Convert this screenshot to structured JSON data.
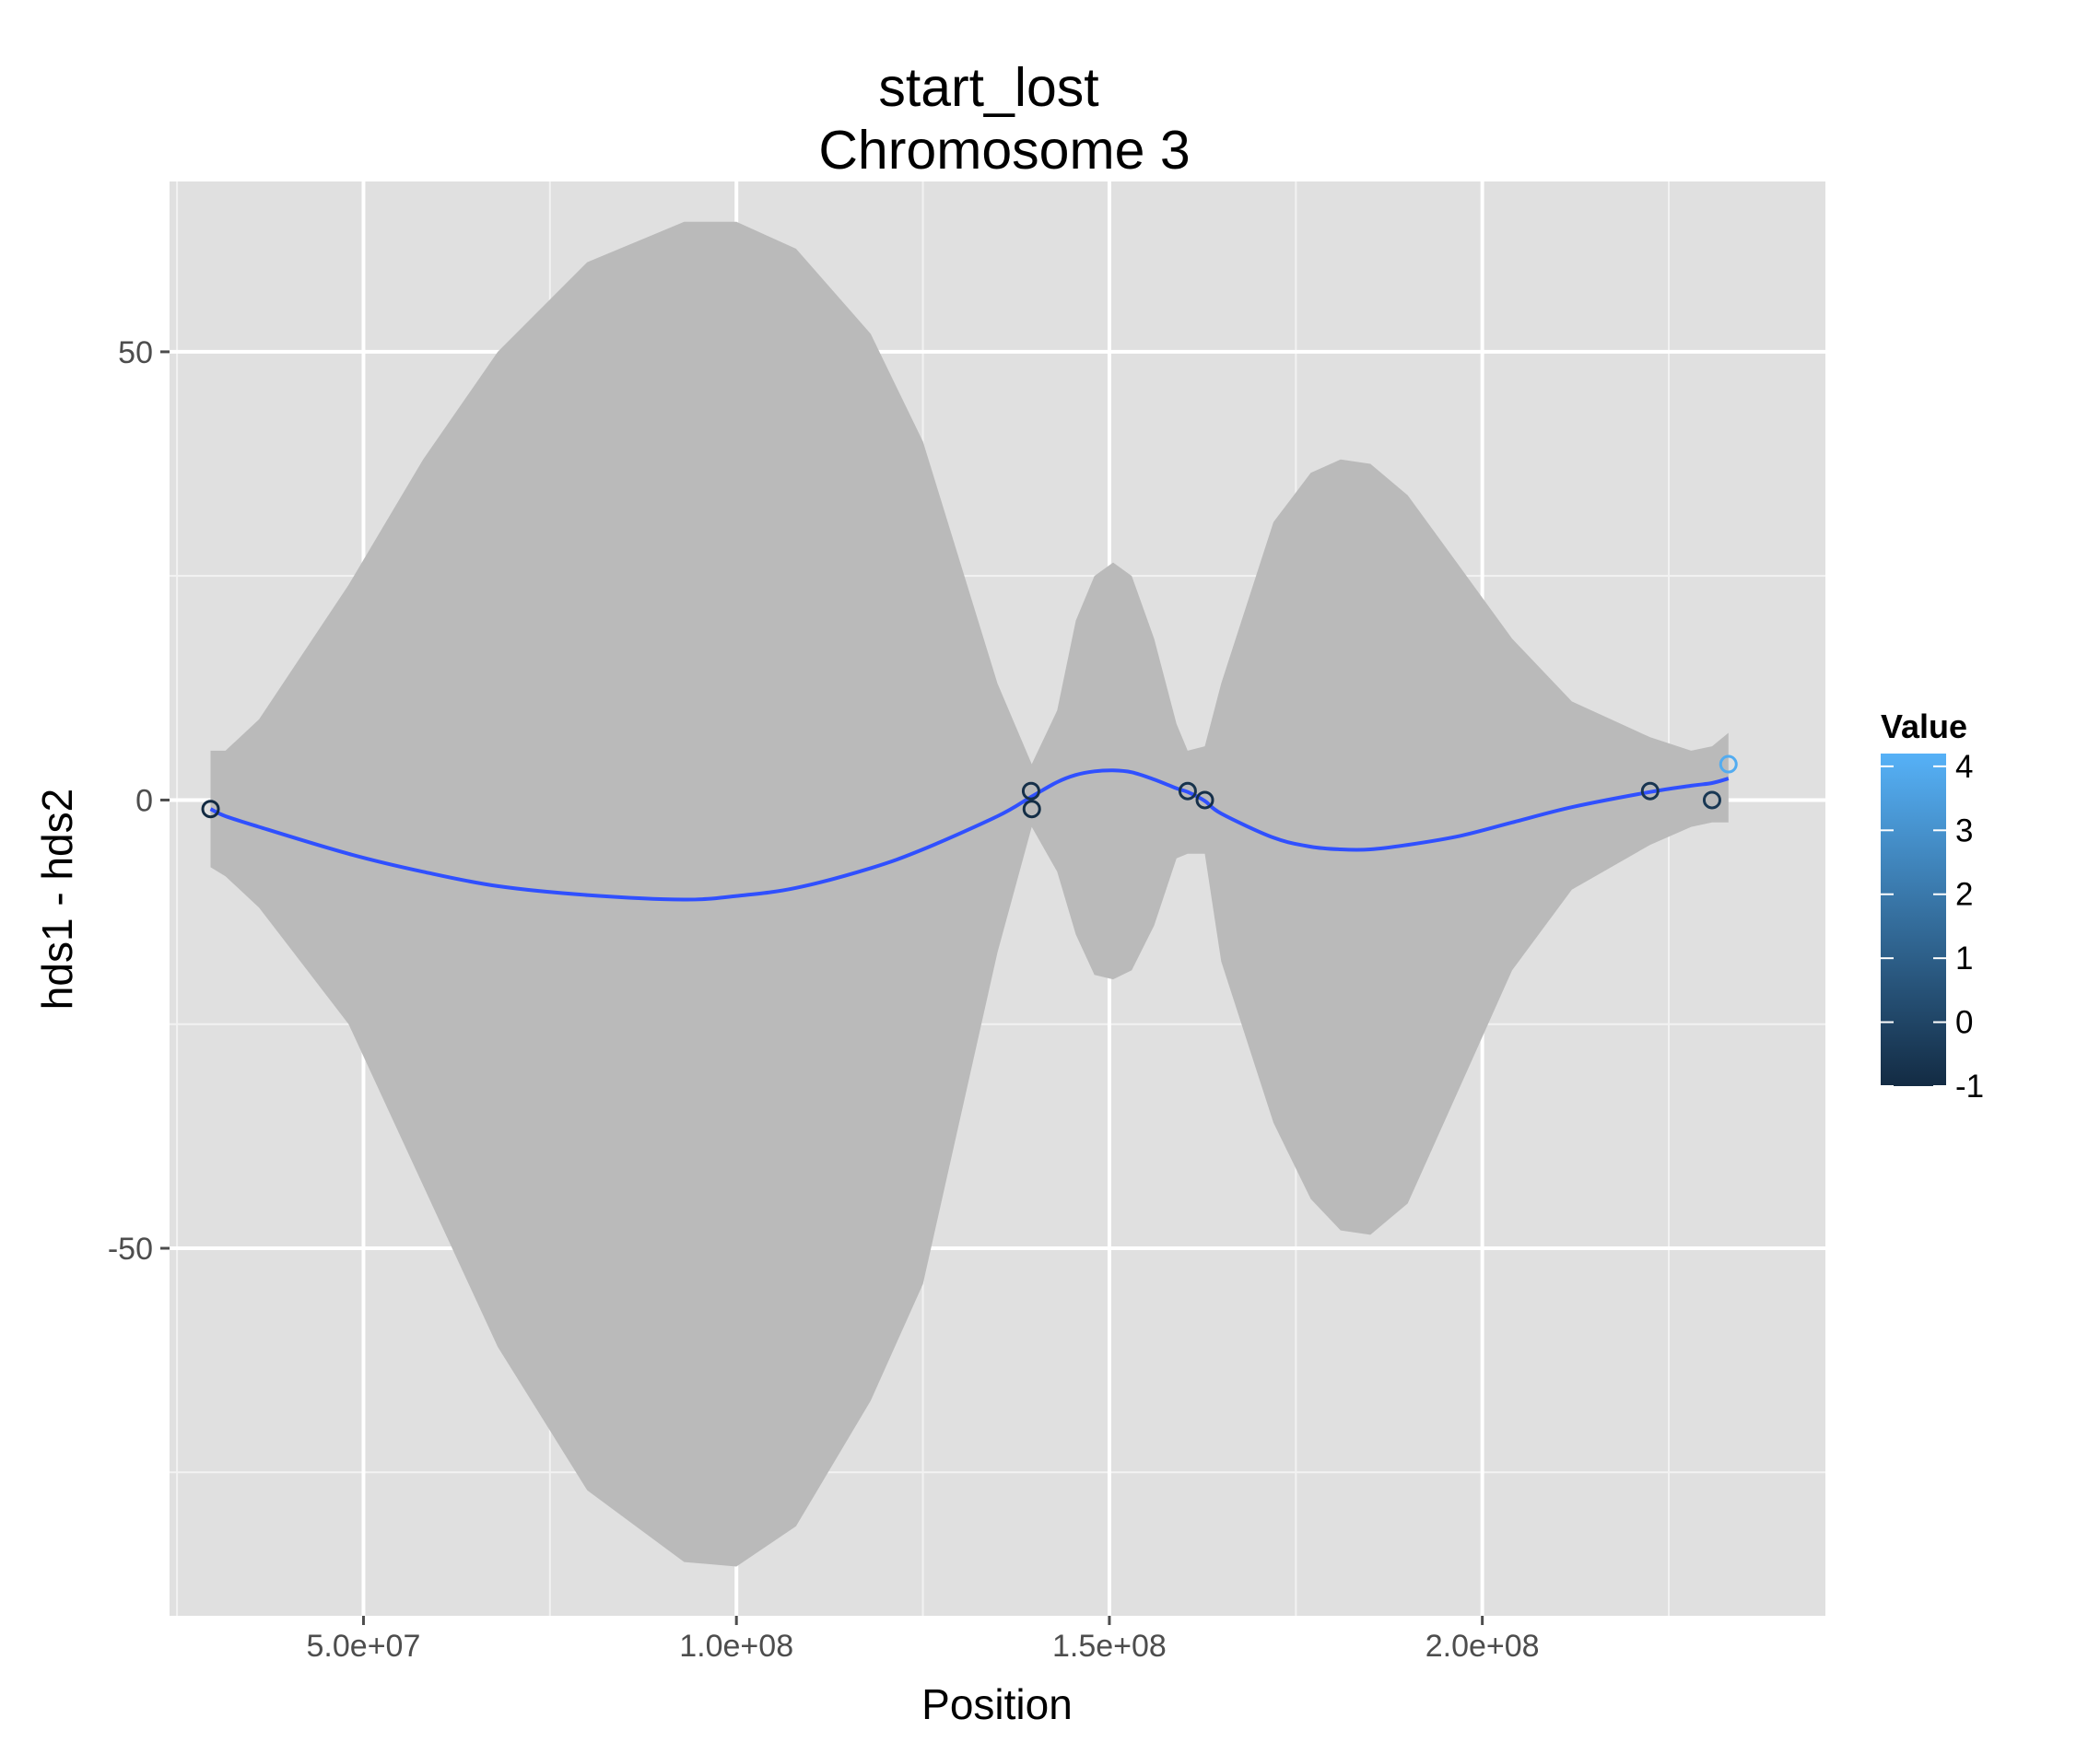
{
  "chart_data": {
    "type": "scatter",
    "title": "start_lost",
    "subtitle": "Chromosome 3",
    "xlabel": "Position",
    "ylabel": "hds1 - hds2",
    "xlim": [
      24000000,
      246000000
    ],
    "ylim": [
      -91,
      69
    ],
    "x_ticks": [
      {
        "value": 50000000,
        "label": "5.0e+07"
      },
      {
        "value": 100000000,
        "label": "1.0e+08"
      },
      {
        "value": 150000000,
        "label": "1.5e+08"
      },
      {
        "value": 200000000,
        "label": "2.0e+08"
      }
    ],
    "y_ticks": [
      {
        "value": 50,
        "label": "50"
      },
      {
        "value": 0,
        "label": "0"
      },
      {
        "value": -50,
        "label": "-50"
      }
    ],
    "grid": true,
    "panel_background": "#e0e0e0",
    "grid_color": "#ffffff",
    "points": [
      {
        "x": 29500000,
        "y": -1,
        "value": -1
      },
      {
        "x": 139500000,
        "y": 1,
        "value": -0.8
      },
      {
        "x": 139600000,
        "y": -1,
        "value": -0.9
      },
      {
        "x": 160500000,
        "y": 1,
        "value": -0.7
      },
      {
        "x": 162800000,
        "y": 0,
        "value": -0.8
      },
      {
        "x": 222500000,
        "y": 1,
        "value": -0.6
      },
      {
        "x": 230800000,
        "y": 0,
        "value": -0.5
      },
      {
        "x": 233000000,
        "y": 4,
        "value": 4
      }
    ],
    "smooth": {
      "color": "#3050ff",
      "band_color": "#bababa",
      "x": [
        29500000,
        31500000,
        36000000,
        48000000,
        58000000,
        68000000,
        80000000,
        93000000,
        100000000,
        108000000,
        118000000,
        125000000,
        135000000,
        139600000,
        143000000,
        145500000,
        148000000,
        150500000,
        153000000,
        156000000,
        159000000,
        160500000,
        162800000,
        165000000,
        172000000,
        177000000,
        181000000,
        185000000,
        190000000,
        197000000,
        204000000,
        212000000,
        222500000,
        228000000,
        230800000,
        233000000
      ],
      "fit": [
        -1,
        -1.8,
        -3,
        -6,
        -8,
        -9.6,
        -10.6,
        -11.1,
        -10.7,
        -9.8,
        -7.6,
        -5.5,
        -1.8,
        0.4,
        2.0,
        2.8,
        3.2,
        3.3,
        3.1,
        2.3,
        1.3,
        0.9,
        -0.1,
        -1.5,
        -4.2,
        -5.2,
        -5.5,
        -5.5,
        -5.0,
        -4.0,
        -2.5,
        -0.8,
        0.9,
        1.6,
        1.9,
        2.4
      ],
      "upper": [
        5.5,
        5.5,
        9,
        24,
        38,
        50,
        60,
        64.5,
        64.5,
        61.5,
        52,
        40,
        13,
        4,
        10,
        20,
        25,
        26.5,
        25,
        18,
        8.5,
        5.5,
        6,
        13,
        31,
        36.5,
        38,
        37.5,
        34,
        26,
        18,
        11,
        7,
        5.5,
        6,
        7.5
      ],
      "lower": [
        -7.5,
        -8.5,
        -12,
        -25,
        -43,
        -61,
        -77,
        -85,
        -85.5,
        -81,
        -67,
        -54,
        -17,
        -3,
        -8,
        -15,
        -19.5,
        -20,
        -19,
        -14,
        -6.5,
        -6,
        -6,
        -18,
        -36,
        -44.5,
        -48,
        -48.5,
        -45,
        -32,
        -19,
        -10,
        -5,
        -3,
        -2.5,
        -2.5
      ]
    },
    "legend": {
      "title": "Value",
      "position": "right",
      "range": [
        -1,
        4.2
      ],
      "ticks": [
        4,
        3,
        2,
        1,
        0,
        -1
      ],
      "tick_labels": [
        "4",
        "3",
        "2",
        "1",
        "0",
        "-1"
      ],
      "color_low": "#132b43",
      "color_high": "#56b1f7"
    }
  }
}
